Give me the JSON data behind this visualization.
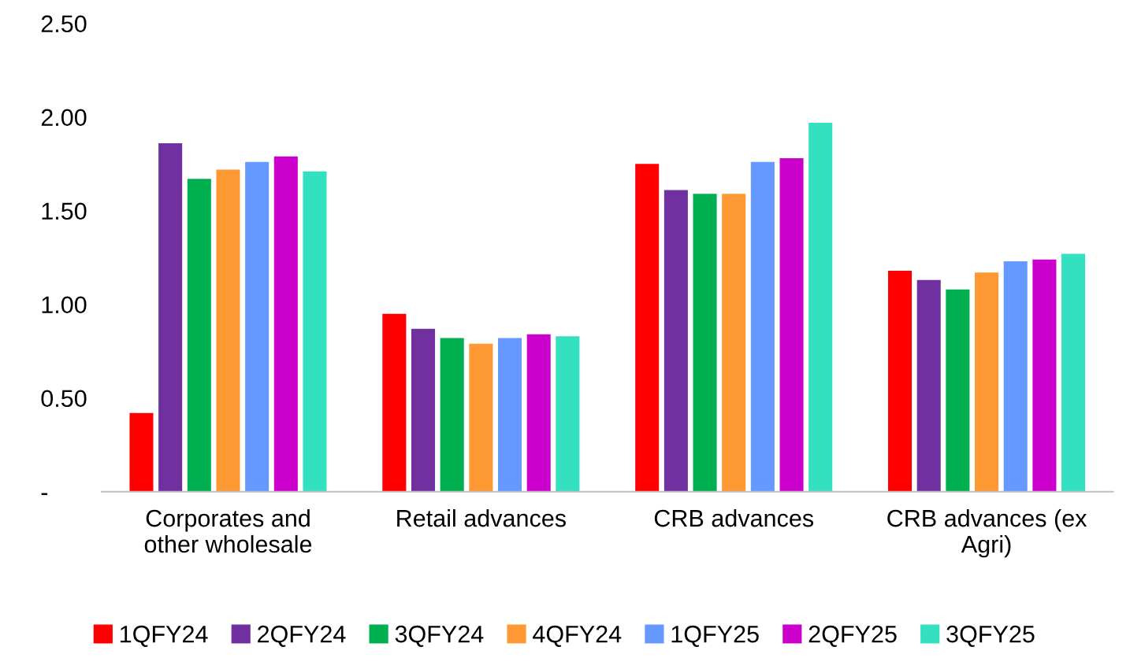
{
  "chart_data": {
    "type": "bar",
    "categories": [
      "Corporates and\nother wholesale",
      "Retail advances",
      "CRB advances",
      "CRB advances (ex\nAgri)"
    ],
    "series": [
      {
        "name": "1QFY24",
        "color": "#ff0000",
        "values": [
          0.42,
          0.95,
          1.75,
          1.18
        ]
      },
      {
        "name": "2QFY24",
        "color": "#7030a0",
        "values": [
          1.86,
          0.87,
          1.61,
          1.13
        ]
      },
      {
        "name": "3QFY24",
        "color": "#00b050",
        "values": [
          1.67,
          0.82,
          1.59,
          1.08
        ]
      },
      {
        "name": "4QFY24",
        "color": "#ff9933",
        "values": [
          1.72,
          0.79,
          1.59,
          1.17
        ]
      },
      {
        "name": "1QFY25",
        "color": "#6699ff",
        "values": [
          1.76,
          0.82,
          1.76,
          1.23
        ]
      },
      {
        "name": "2QFY25",
        "color": "#cc00cc",
        "values": [
          1.79,
          0.84,
          1.78,
          1.24
        ]
      },
      {
        "name": "3QFY25",
        "color": "#33e0c0",
        "values": [
          1.71,
          0.83,
          1.97,
          1.27
        ]
      }
    ],
    "ylim": [
      0,
      2.5
    ],
    "yticks": [
      {
        "value": 0,
        "label": "-"
      },
      {
        "value": 0.5,
        "label": "0.50"
      },
      {
        "value": 1,
        "label": "1.00"
      },
      {
        "value": 1.5,
        "label": "1.50"
      },
      {
        "value": 2,
        "label": "2.00"
      },
      {
        "value": 2.5,
        "label": "2.50"
      }
    ],
    "grid": false,
    "legend": "bottom"
  }
}
